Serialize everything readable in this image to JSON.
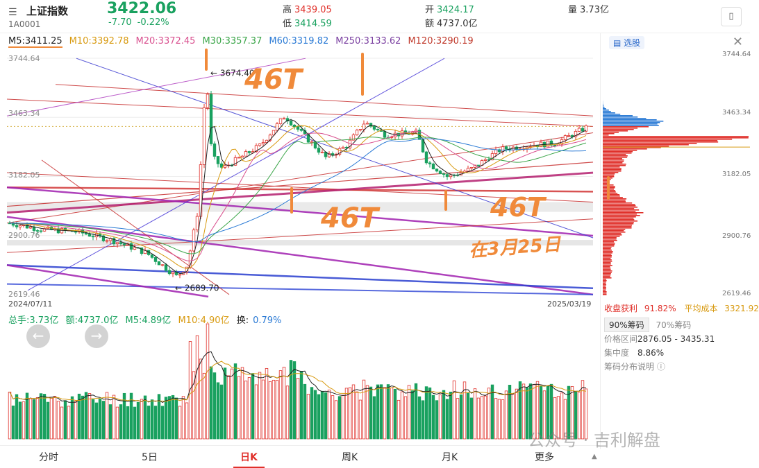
{
  "header": {
    "menu_icon": "menu-icon",
    "index_name": "上证指数",
    "index_code": "1A0001",
    "price": "3422.06",
    "change": "-7.70",
    "change_pct": "-0.22%",
    "high_label": "高",
    "high": "3439.05",
    "low_label": "低",
    "low": "3414.59",
    "open_label": "开",
    "open": "3424.17",
    "amount_label": "额",
    "amount": "4737.0亿",
    "volume_label": "量",
    "volume": "3.73亿",
    "device_icon": "phone-icon"
  },
  "ma_legend": [
    {
      "text": "M5:3411.25",
      "color": "#222222"
    },
    {
      "text": "M10:3392.78",
      "color": "#d89a10"
    },
    {
      "text": "M20:3372.45",
      "color": "#d9508f"
    },
    {
      "text": "M30:3357.37",
      "color": "#3aa548"
    },
    {
      "text": "M60:3319.82",
      "color": "#2a7ad5"
    },
    {
      "text": "M250:3133.62",
      "color": "#7a3fa0"
    },
    {
      "text": "M120:3290.19",
      "color": "#c0392b"
    }
  ],
  "main_axis": {
    "labels": [
      "3744.64",
      "3463.34",
      "3182.05",
      "2900.76",
      "2619.46"
    ],
    "date_start": "2024/07/11",
    "date_end": "2025/03/19",
    "peak_label": "3674.40",
    "trough_label": "2689.70"
  },
  "annotations": {
    "top_46": "46T",
    "mid_46": "46T",
    "mid2_46": "46T",
    "date_note": "在3月25日"
  },
  "volume_bar": {
    "total_label": "总手:3.73亿",
    "amount_label": "额:4737.0亿",
    "m5_label": "M5:4.89亿",
    "m10_label": "M10:4.90亿",
    "turnover_label": "换:",
    "turnover_value": "0.79%",
    "prev_icon": "arrow-left-icon",
    "next_icon": "arrow-right-icon"
  },
  "right_panel": {
    "select_label": "选股",
    "axis_labels": [
      "3744.64",
      "3463.34",
      "3182.05",
      "2900.76",
      "2619.46"
    ],
    "profit_label": "收盘获利",
    "profit_value": "91.82%",
    "avg_cost_label": "平均成本",
    "avg_cost_value": "3321.92",
    "tab_90": "90%筹码",
    "tab_70": "70%筹码",
    "range_label": "价格区间",
    "range_value": "2876.05 - 3435.31",
    "concentration_label": "集中度",
    "concentration_value": "8.86%",
    "help_label": "筹码分布说明",
    "help_icon": "help-icon",
    "close_icon": "close-icon"
  },
  "bottom_tabs": [
    {
      "label": "分时"
    },
    {
      "label": "5日"
    },
    {
      "label": "日K"
    },
    {
      "label": "周K"
    },
    {
      "label": "月K"
    },
    {
      "label": "更多"
    }
  ],
  "watermark": "公众号 · 吉利解盘",
  "colors": {
    "up": "#e0302a",
    "down": "#19a15f",
    "annotation": "#f08a3a"
  }
}
